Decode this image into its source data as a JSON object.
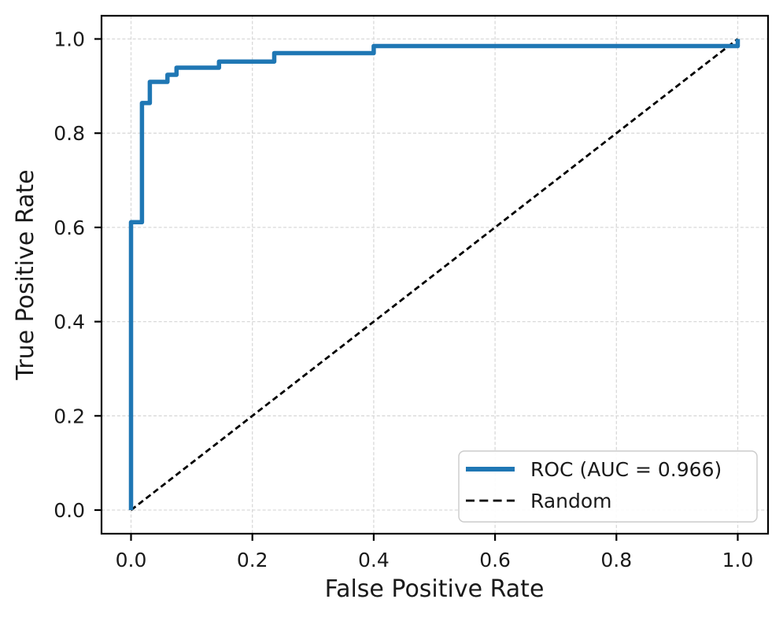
{
  "chart_data": {
    "type": "line",
    "title": "",
    "xlabel": "False Positive Rate",
    "ylabel": "True Positive Rate",
    "xlim": [
      -0.05,
      1.05
    ],
    "ylim": [
      -0.05,
      1.05
    ],
    "grid": {
      "visible": true,
      "linestyle": "dashed",
      "color": "#d9d9d9"
    },
    "xticks": {
      "values": [
        0.0,
        0.2,
        0.4,
        0.6,
        0.8,
        1.0
      ],
      "labels": [
        "0.0",
        "0.2",
        "0.4",
        "0.6",
        "0.8",
        "1.0"
      ]
    },
    "yticks": {
      "values": [
        0.0,
        0.2,
        0.4,
        0.6,
        0.8,
        1.0
      ],
      "labels": [
        "0.0",
        "0.2",
        "0.4",
        "0.6",
        "0.8",
        "1.0"
      ]
    },
    "series": [
      {
        "name": "ROC (AUC = 0.966)",
        "kind": "step",
        "color": "#1f77b4",
        "linestyle": "solid",
        "linewidth": 5.5,
        "points": [
          [
            0.0,
            0.0
          ],
          [
            0.0,
            0.611
          ],
          [
            0.018,
            0.611
          ],
          [
            0.018,
            0.864
          ],
          [
            0.031,
            0.864
          ],
          [
            0.031,
            0.909
          ],
          [
            0.06,
            0.909
          ],
          [
            0.06,
            0.924
          ],
          [
            0.075,
            0.924
          ],
          [
            0.075,
            0.939
          ],
          [
            0.145,
            0.939
          ],
          [
            0.145,
            0.952
          ],
          [
            0.236,
            0.952
          ],
          [
            0.236,
            0.97
          ],
          [
            0.4,
            0.97
          ],
          [
            0.4,
            0.985
          ],
          [
            1.0,
            0.985
          ],
          [
            1.0,
            1.0
          ]
        ]
      },
      {
        "name": "Random",
        "kind": "line",
        "color": "#000000",
        "linestyle": "dashed",
        "linewidth": 2.8,
        "points": [
          [
            0.0,
            0.0
          ],
          [
            1.0,
            1.0
          ]
        ]
      }
    ],
    "legend": {
      "position": "lower right",
      "entries": [
        {
          "label": "ROC (AUC = 0.966)",
          "color": "#1f77b4",
          "linestyle": "solid"
        },
        {
          "label": "Random",
          "color": "#000000",
          "linestyle": "dashed"
        }
      ]
    },
    "auc": "0.966"
  },
  "colors": {
    "background": "#ffffff",
    "text": "#1a1a1a",
    "spine": "#000000",
    "grid": "#d9d9d9",
    "roc_curve": "#1f77b4",
    "random_line": "#000000"
  }
}
